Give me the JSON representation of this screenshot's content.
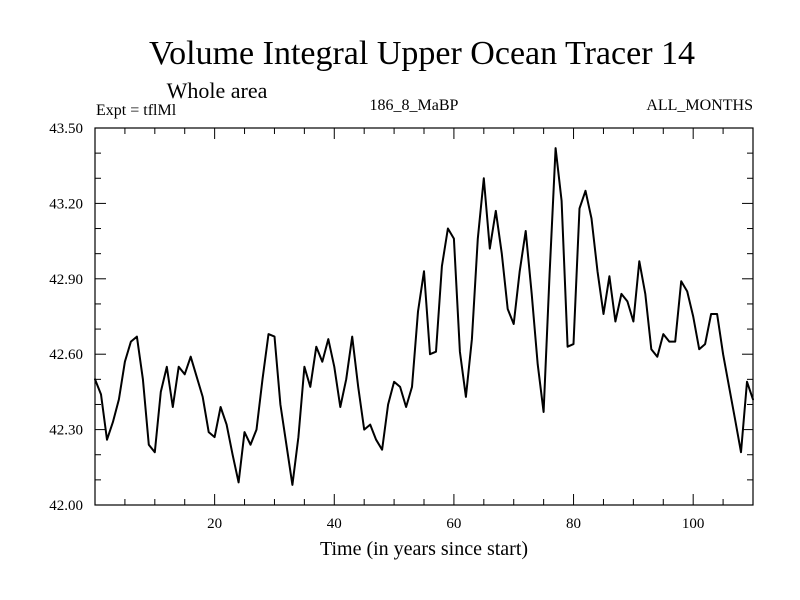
{
  "chart_data": {
    "type": "line",
    "title": "Volume Integral Upper Ocean Tracer 14",
    "subtitle": "Whole area",
    "expt_label": "Expt = tflMl",
    "run_label": "186_8_MaBP",
    "months_label": "ALL_MONTHS",
    "xlabel": "Time (in years since start)",
    "ylabel": "",
    "xlim": [
      0,
      110
    ],
    "ylim": [
      42.0,
      43.5
    ],
    "x_ticks": [
      20,
      40,
      60,
      80,
      100
    ],
    "x_tick_labels": [
      "20",
      "40",
      "60",
      "80",
      "100"
    ],
    "y_ticks": [
      42.0,
      42.3,
      42.6,
      42.9,
      43.2,
      43.5
    ],
    "y_tick_labels": [
      "42.00",
      "42.30",
      "42.60",
      "42.90",
      "43.20",
      "43.50"
    ],
    "line_color": "#000000",
    "series": [
      {
        "name": "Tracer 14",
        "x": [
          0,
          1,
          2,
          3,
          4,
          5,
          6,
          7,
          8,
          9,
          10,
          11,
          12,
          13,
          14,
          15,
          16,
          17,
          18,
          19,
          20,
          21,
          22,
          23,
          24,
          25,
          26,
          27,
          28,
          29,
          30,
          31,
          32,
          33,
          34,
          35,
          36,
          37,
          38,
          39,
          40,
          41,
          42,
          43,
          44,
          45,
          46,
          47,
          48,
          49,
          50,
          51,
          52,
          53,
          54,
          55,
          56,
          57,
          58,
          59,
          60,
          61,
          62,
          63,
          64,
          65,
          66,
          67,
          68,
          69,
          70,
          71,
          72,
          73,
          74,
          75,
          76,
          77,
          78,
          79,
          80,
          81,
          82,
          83,
          84,
          85,
          86,
          87,
          88,
          89,
          90,
          91,
          92,
          93,
          94,
          95,
          96,
          97,
          98,
          99,
          100,
          101,
          102,
          103,
          104,
          105,
          106,
          107,
          108,
          109,
          110
        ],
        "values": [
          42.5,
          42.44,
          42.26,
          42.33,
          42.42,
          42.57,
          42.65,
          42.67,
          42.5,
          42.24,
          42.21,
          42.45,
          42.55,
          42.39,
          42.55,
          42.52,
          42.59,
          42.51,
          42.43,
          42.29,
          42.27,
          42.39,
          42.32,
          42.2,
          42.09,
          42.29,
          42.24,
          42.3,
          42.5,
          42.68,
          42.67,
          42.4,
          42.24,
          42.08,
          42.27,
          42.55,
          42.47,
          42.63,
          42.57,
          42.66,
          42.55,
          42.39,
          42.5,
          42.67,
          42.47,
          42.3,
          42.32,
          42.26,
          42.22,
          42.4,
          42.49,
          42.47,
          42.39,
          42.47,
          42.77,
          42.93,
          42.6,
          42.61,
          42.95,
          43.1,
          43.06,
          42.61,
          42.43,
          42.66,
          43.06,
          43.3,
          43.02,
          43.17,
          43.0,
          42.78,
          42.72,
          42.93,
          43.09,
          42.84,
          42.56,
          42.37,
          42.92,
          43.42,
          43.21,
          42.63,
          42.64,
          43.18,
          43.25,
          43.14,
          42.93,
          42.76,
          42.91,
          42.73,
          42.84,
          42.81,
          42.73,
          42.97,
          42.84,
          42.62,
          42.59,
          42.68,
          42.65,
          42.65,
          42.89,
          42.85,
          42.75,
          42.62,
          42.64,
          42.76,
          42.76,
          42.6,
          42.47,
          42.34,
          42.21,
          42.49,
          42.42
        ]
      }
    ]
  }
}
